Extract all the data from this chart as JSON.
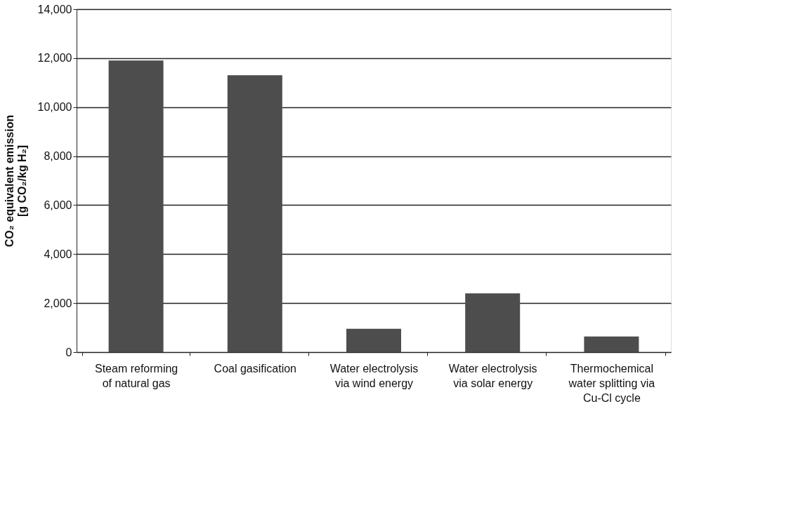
{
  "chart_data": {
    "type": "bar",
    "ylabel": "CO₂ equivalent emission\n[g CO₂/kg H₂]",
    "categories": [
      "Steam reforming\nof natural gas",
      "Coal gasification",
      "Water electrolysis\nvia wind energy",
      "Water electrolysis\nvia solar energy",
      "Thermochemical\nwater splitting via\nCu-Cl cycle"
    ],
    "values": [
      11900,
      11300,
      950,
      2400,
      640
    ],
    "color": "#4d4d4d",
    "ylim": [
      0,
      14000
    ],
    "yticks": [
      0,
      {
        "value": 2000,
        "label": "2,000"
      },
      {
        "value": 4000,
        "label": "4,000"
      },
      {
        "value": 6000,
        "label": "6,000"
      },
      {
        "value": 8000,
        "label": "8,000"
      },
      {
        "value": 10000,
        "label": "10,000"
      },
      {
        "value": 12000,
        "label": "12,000"
      },
      {
        "value": 14000,
        "label": "14,000"
      }
    ],
    "grid": "y"
  }
}
